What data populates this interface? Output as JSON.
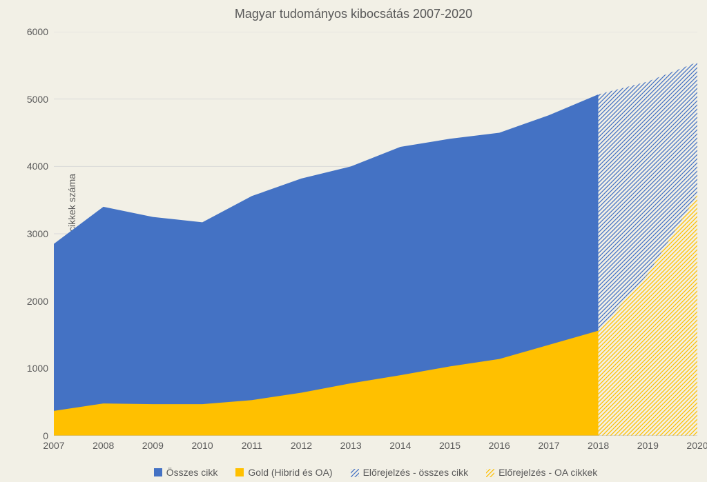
{
  "chart": {
    "type": "area",
    "title": "Magyar tudományos kibocsátás 2007-2020",
    "title_fontsize": 18,
    "ylabel": "Levelező szerzős cikkek száma",
    "label_fontsize": 14,
    "background_color": "#f2f0e6",
    "plot_background_color": "#f2f0e6",
    "grid_color": "#d9d9d9",
    "axis_color": "#bfbfbf",
    "text_color": "#595959",
    "tick_fontsize": 14,
    "x": {
      "categories": [
        "2007",
        "2008",
        "2009",
        "2010",
        "2011",
        "2012",
        "2013",
        "2014",
        "2015",
        "2016",
        "2017",
        "2018",
        "2019",
        "2020"
      ]
    },
    "y": {
      "min": 0,
      "max": 6000,
      "tick_step": 1000,
      "ticks": [
        "0",
        "1000",
        "2000",
        "3000",
        "4000",
        "5000",
        "6000"
      ]
    },
    "series": [
      {
        "id": "osszes",
        "name": "Összes cikk",
        "color": "#4472c4",
        "values": [
          2850,
          3400,
          3250,
          3170,
          3560,
          3820,
          4000,
          4290,
          4410,
          4500,
          4760,
          5070,
          null,
          null
        ]
      },
      {
        "id": "gold",
        "name": "Gold (Hibrid és OA)",
        "color": "#ffc000",
        "values": [
          370,
          480,
          470,
          470,
          530,
          640,
          780,
          900,
          1030,
          1140,
          1350,
          1560,
          null,
          null
        ]
      },
      {
        "id": "forecast_osszes",
        "name": "Előrejelzés - összes cikk",
        "color": "#4472c4",
        "pattern": "hatch",
        "values": [
          null,
          null,
          null,
          null,
          null,
          null,
          null,
          null,
          null,
          null,
          null,
          5070,
          5260,
          5550
        ]
      },
      {
        "id": "forecast_oa",
        "name": "Előrejelzés - OA cikkek",
        "color": "#ffc000",
        "pattern": "hatch",
        "values": [
          null,
          null,
          null,
          null,
          null,
          null,
          null,
          null,
          null,
          null,
          null,
          1560,
          2400,
          3580
        ]
      }
    ],
    "legend": {
      "position": "bottom",
      "items": [
        {
          "label": "Összes cikk",
          "series": "osszes"
        },
        {
          "label": "Gold (Hibrid és OA)",
          "series": "gold"
        },
        {
          "label": "Előrejelzés - összes cikk",
          "series": "forecast_osszes"
        },
        {
          "label": "Előrejelzés - OA cikkek",
          "series": "forecast_oa"
        }
      ]
    }
  }
}
